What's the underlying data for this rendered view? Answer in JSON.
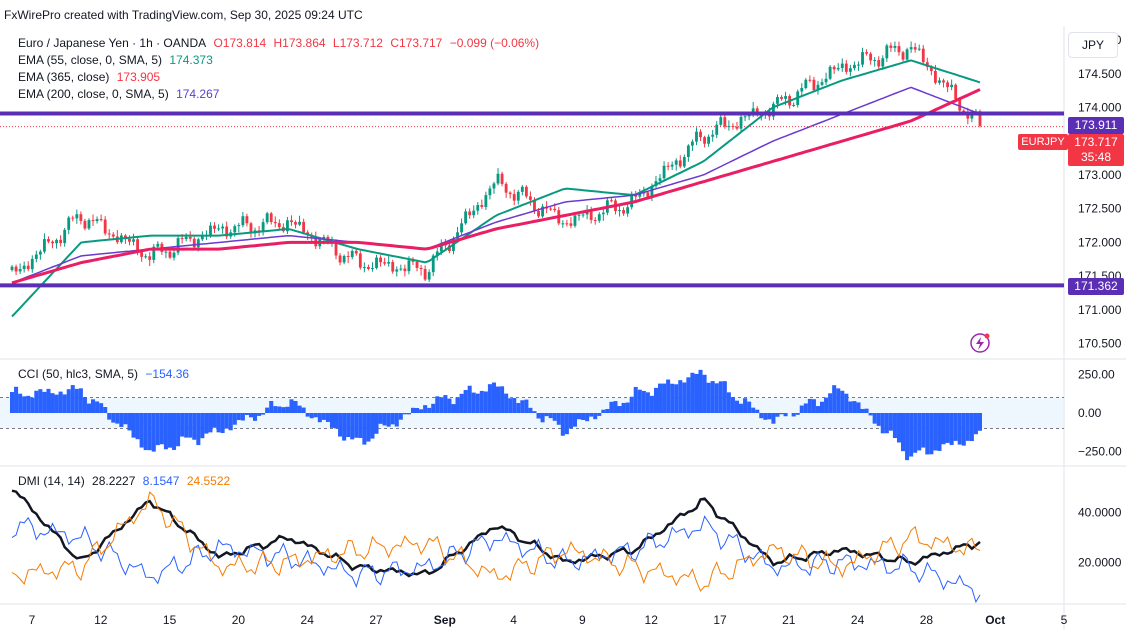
{
  "credit": "FxWirePro created with TradingView.com, Sep 30, 2025 09:24 UTC",
  "currency_button": "JPY",
  "colors": {
    "ema55": "#089981",
    "ema365": "#6a3ad1",
    "ema200": "#e91e63",
    "hline": "#5b2fb5",
    "cci": "#2962ff",
    "dmi_adx": "#131722",
    "dmi_plus": "#2962ff",
    "dmi_minus": "#f57c00",
    "down": "#f23645",
    "up": "#089981"
  },
  "legend": {
    "main": {
      "symbol": "Euro / Japanese Yen · 1h · OANDA",
      "open": "O173.814",
      "high": "H173.864",
      "low": "L173.712",
      "close": "C173.717",
      "change": "−0.099 (−0.06%)"
    },
    "ema55": {
      "label": "EMA (55, close, 0, SMA, 5)",
      "value": "174.373"
    },
    "ema365": {
      "label": "EMA (365, close)",
      "value": "173.905"
    },
    "ema200": {
      "label": "EMA (200, close, 0, SMA, 5)",
      "value": "174.267"
    },
    "cci": {
      "label": "CCI (50, hlc3, SMA, 5)",
      "value": "−154.36"
    },
    "dmi": {
      "label": "DMI (14, 14)",
      "adx": "28.2227",
      "plus": "8.1547",
      "minus": "24.5522"
    }
  },
  "price_tags": {
    "resistance": "173.911",
    "last": "173.717",
    "countdown": "35:48",
    "support": "171.362",
    "symbol": "EURJPY"
  },
  "chart_data": [
    {
      "type": "line",
      "panel": "price",
      "title": "Euro / Japanese Yen · 1h · OANDA",
      "ylim": [
        170.3,
        175.15
      ],
      "y_ticks": [
        "175.000",
        "174.500",
        "174.000",
        "173.500",
        "173.000",
        "172.500",
        "172.000",
        "171.500",
        "171.000",
        "170.500"
      ],
      "x_ticks": [
        "7",
        "12",
        "15",
        "20",
        "24",
        "27",
        "Sep",
        "4",
        "9",
        "12",
        "17",
        "21",
        "24",
        "28",
        "Oct",
        "5"
      ],
      "x": [
        "Aug 7",
        "Aug 12",
        "Aug 15",
        "Aug 20",
        "Aug 24",
        "Aug 27",
        "Sep 1",
        "Sep 4",
        "Sep 9",
        "Sep 12",
        "Sep 17",
        "Sep 21",
        "Sep 24",
        "Sep 28",
        "Sep 30"
      ],
      "series": [
        {
          "name": "Close",
          "values": [
            171.5,
            172.4,
            171.8,
            172.2,
            172.3,
            171.7,
            171.6,
            172.9,
            172.3,
            172.6,
            173.6,
            174.0,
            174.6,
            174.9,
            173.717
          ]
        },
        {
          "name": "EMA (55, close, 0, SMA, 5)",
          "values": [
            170.9,
            172.0,
            172.1,
            172.1,
            172.2,
            171.9,
            171.7,
            172.4,
            172.8,
            172.7,
            173.2,
            174.0,
            174.4,
            174.7,
            174.373
          ]
        },
        {
          "name": "EMA (365, close)",
          "values": [
            171.4,
            171.8,
            171.9,
            172.0,
            172.1,
            172.0,
            171.9,
            172.3,
            172.6,
            172.7,
            173.0,
            173.5,
            173.9,
            174.3,
            173.905
          ]
        },
        {
          "name": "EMA (200, close, 0, SMA, 5)",
          "values": [
            171.4,
            171.7,
            171.9,
            171.9,
            172.0,
            172.0,
            171.9,
            172.2,
            172.4,
            172.6,
            172.9,
            173.2,
            173.5,
            173.8,
            174.267
          ]
        }
      ],
      "horizontal_lines": [
        173.911,
        171.362
      ]
    },
    {
      "type": "bar",
      "panel": "cci",
      "title": "CCI (50, hlc3, SMA, 5)",
      "ylim": [
        -330,
        330
      ],
      "y_ticks": [
        "250.00",
        "0.00",
        "−250.00"
      ],
      "bands": [
        100,
        -100
      ],
      "x": [
        "Aug 7",
        "Aug 12",
        "Aug 15",
        "Aug 20",
        "Aug 24",
        "Aug 27",
        "Sep 1",
        "Sep 4",
        "Sep 9",
        "Sep 12",
        "Sep 17",
        "Sep 21",
        "Sep 24",
        "Sep 28",
        "Sep 30"
      ],
      "values": [
        120,
        150,
        -250,
        -120,
        80,
        -200,
        60,
        180,
        -120,
        120,
        260,
        -60,
        160,
        -280,
        -154.36
      ]
    },
    {
      "type": "line",
      "panel": "dmi",
      "title": "DMI (14, 14)",
      "ylim": [
        4,
        58
      ],
      "y_ticks": [
        "40.0000",
        "20.0000"
      ],
      "x": [
        "Aug 7",
        "Aug 12",
        "Aug 15",
        "Aug 20",
        "Aug 24",
        "Aug 27",
        "Sep 1",
        "Sep 4",
        "Sep 9",
        "Sep 12",
        "Sep 17",
        "Sep 21",
        "Sep 24",
        "Sep 28",
        "Sep 30"
      ],
      "series": [
        {
          "name": "ADX",
          "values": [
            50,
            20,
            45,
            22,
            30,
            18,
            15,
            35,
            20,
            25,
            45,
            20,
            25,
            20,
            28.2227
          ]
        },
        {
          "name": "+DI",
          "values": [
            35,
            30,
            14,
            26,
            22,
            15,
            18,
            30,
            20,
            25,
            35,
            18,
            20,
            18,
            8.1547
          ]
        },
        {
          "name": "−DI",
          "values": [
            15,
            18,
            45,
            18,
            20,
            25,
            28,
            14,
            25,
            18,
            12,
            25,
            18,
            30,
            24.5522
          ]
        }
      ]
    }
  ]
}
